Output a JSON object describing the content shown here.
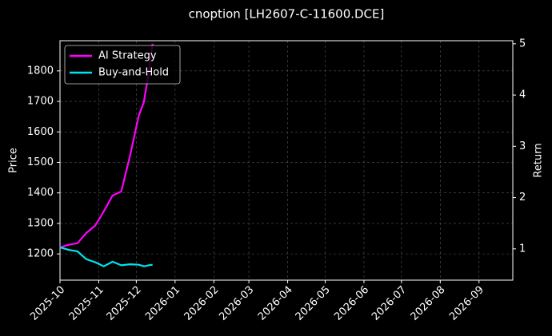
{
  "chart_data": {
    "type": "line",
    "title": "cnoption [LH2607-C-11600.DCE]",
    "ylabel": "Price",
    "y2label": "Return",
    "x": [
      "2025-10-01",
      "2025-10-08",
      "2025-10-15",
      "2025-10-22",
      "2025-10-29",
      "2025-11-05",
      "2025-11-12",
      "2025-11-19",
      "2025-11-26",
      "2025-12-03",
      "2025-12-07",
      "2025-12-11",
      "2025-12-14"
    ],
    "series": [
      {
        "name": "AI Strategy",
        "color": "#ff00ff",
        "axis": "y2",
        "values": [
          1.03,
          1.08,
          1.11,
          1.31,
          1.45,
          1.73,
          2.04,
          2.12,
          2.82,
          3.6,
          3.86,
          4.45,
          5.0
        ]
      },
      {
        "name": "Buy-and-Hold",
        "color": "#00e5ee",
        "axis": "y2",
        "values": [
          1.03,
          0.98,
          0.95,
          0.8,
          0.74,
          0.66,
          0.75,
          0.68,
          0.7,
          0.69,
          0.66,
          0.68,
          0.69
        ]
      }
    ],
    "xlim": [
      "2025-10-01",
      "2026-09-28"
    ],
    "xticks": [
      "2025-10",
      "2025-11",
      "2025-12",
      "2026-01",
      "2026-02",
      "2026-03",
      "2026-04",
      "2026-05",
      "2026-06",
      "2026-07",
      "2026-08",
      "2026-09"
    ],
    "ylim": [
      1114,
      1899
    ],
    "yticks": [
      1200,
      1300,
      1400,
      1500,
      1600,
      1700,
      1800
    ],
    "y2lim": [
      0.39,
      5.06
    ],
    "y2ticks": [
      1,
      2,
      3,
      4,
      5
    ],
    "grid": true,
    "legend": "upper left"
  }
}
